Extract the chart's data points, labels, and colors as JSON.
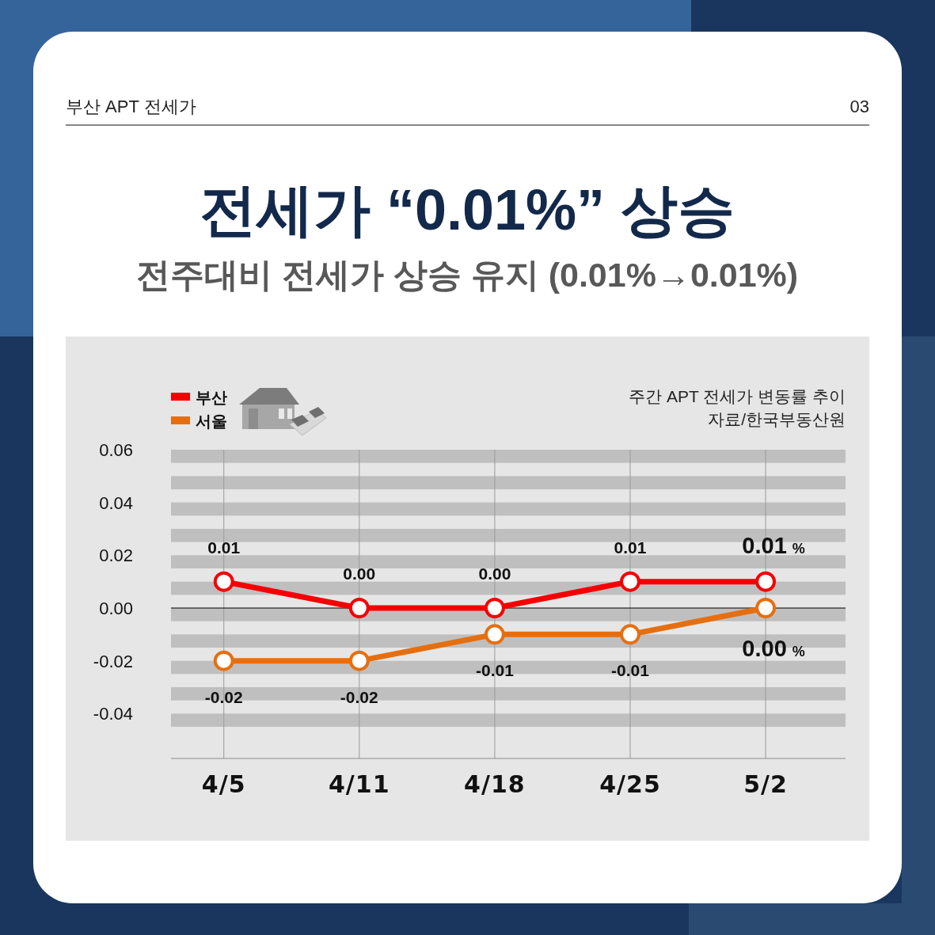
{
  "chart_data": {
    "type": "line",
    "title": "전세가 “0.01%” 상승",
    "subtitle": "전주대비 전세가 상승 유지 (0.01%→0.01%)",
    "annotations": [
      "부산 APT 전세가",
      "03",
      "주간 APT 전세가 변동률 추이",
      "자료/한국부동산원"
    ],
    "categories": [
      "4/5",
      "4/11",
      "4/18",
      "4/25",
      "5/2"
    ],
    "series": [
      {
        "name": "부산",
        "color": "#f50000",
        "values": [
          0.01,
          0,
          0,
          0.01,
          0.01
        ],
        "value_labels": [
          "0.01",
          "0.00",
          "0.00",
          "0.01",
          "0.01 %"
        ]
      },
      {
        "name": "서울",
        "color": "#e56f10",
        "values": [
          -0.02,
          -0.02,
          -0.01,
          -0.01,
          0
        ],
        "value_labels": [
          "-0.02",
          "-0.02",
          "-0.01",
          "-0.01",
          "0.00 %"
        ]
      }
    ],
    "ylim": [
      -0.057,
      0.06
    ],
    "yticks": [
      {
        "value": 0.06,
        "label": "0.06"
      },
      {
        "value": 0.04,
        "label": "0.04"
      },
      {
        "value": 0.02,
        "label": "0.02"
      },
      {
        "value": 0,
        "label": "0.00"
      },
      {
        "value": -0.02,
        "label": "-0.02"
      },
      {
        "value": -0.04,
        "label": "-0.04"
      }
    ],
    "ref_lines": [
      {
        "axis": "y",
        "value": 0,
        "color": "#000000"
      }
    ],
    "bands": [
      {
        "axis": "y",
        "from": 0.055,
        "to": 0.06,
        "color": "#bfbfbf"
      },
      {
        "axis": "y",
        "from": 0.045,
        "to": 0.05,
        "color": "#bfbfbf"
      },
      {
        "axis": "y",
        "from": 0.035,
        "to": 0.04,
        "color": "#bfbfbf"
      },
      {
        "axis": "y",
        "from": 0.025,
        "to": 0.03,
        "color": "#bfbfbf"
      },
      {
        "axis": "y",
        "from": 0.015,
        "to": 0.02,
        "color": "#bfbfbf"
      },
      {
        "axis": "y",
        "from": 0.005,
        "to": 0.01,
        "color": "#bfbfbf"
      },
      {
        "axis": "y",
        "from": -0.005,
        "to": 0,
        "color": "#bfbfbf"
      },
      {
        "axis": "y",
        "from": -0.015,
        "to": -0.01,
        "color": "#bfbfbf"
      },
      {
        "axis": "y",
        "from": -0.025,
        "to": -0.02,
        "color": "#bfbfbf"
      },
      {
        "axis": "y",
        "from": -0.035,
        "to": -0.03,
        "color": "#bfbfbf"
      },
      {
        "axis": "y",
        "from": -0.045,
        "to": -0.04,
        "color": "#bfbfbf"
      }
    ],
    "grid": "x",
    "legend": "top left",
    "marker": "circle",
    "line_style": "solid"
  }
}
